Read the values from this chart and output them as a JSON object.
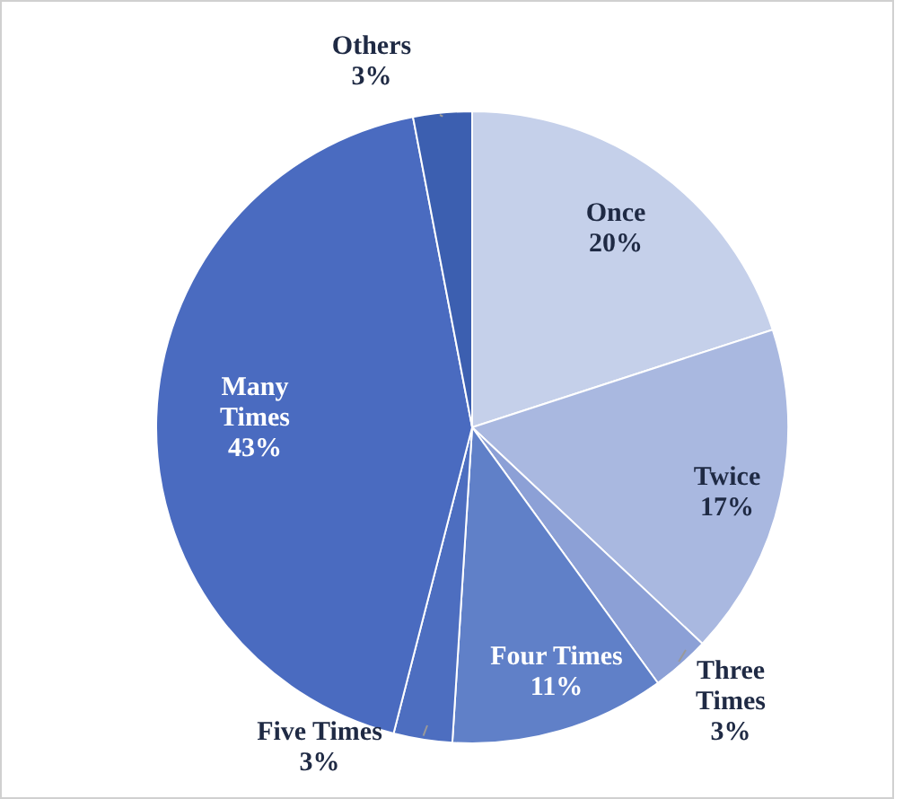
{
  "chart_data": {
    "type": "pie",
    "categories": [
      "Once",
      "Twice",
      "Three Times",
      "Four Times",
      "Five Times",
      "Many Times",
      "Others"
    ],
    "values": [
      20,
      17,
      3,
      11,
      3,
      43,
      3
    ],
    "colors": [
      "#c5d0ea",
      "#a9b8e0",
      "#8ca0d6",
      "#6080c8",
      "#4d6ec0",
      "#4a6bc0",
      "#3c5fb0"
    ],
    "value_labels": [
      "20%",
      "17%",
      "3%",
      "11%",
      "3%",
      "43%",
      "3%"
    ]
  }
}
